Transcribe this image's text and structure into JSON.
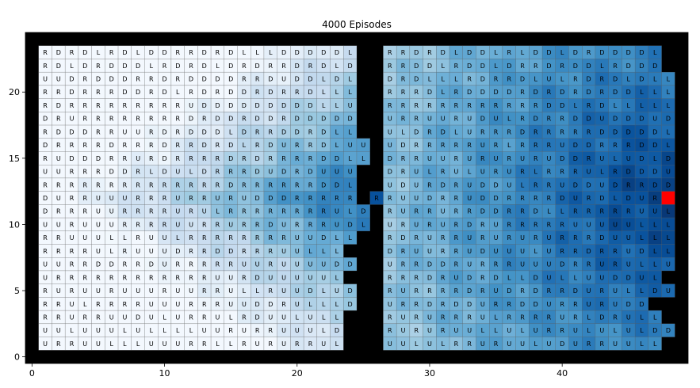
{
  "chart_data": {
    "type": "heatmap",
    "title": "4000 Episodes",
    "xlabel": "",
    "ylabel": "",
    "xlim": [
      -0.5,
      49.5
    ],
    "ylim": [
      -0.5,
      24.5
    ],
    "xticks": [
      0,
      10,
      20,
      30,
      40
    ],
    "yticks": [
      0,
      5,
      10,
      15,
      20
    ],
    "colormap": "Blues",
    "colors": {
      "wall": "#000000",
      "goal": "#ff0000",
      "gridline": "#666666"
    },
    "goal": [
      48,
      12
    ],
    "corridor": {
      "x": [
        26
      ],
      "y": [
        12
      ]
    },
    "rooms": [
      {
        "name": "left",
        "x_start": 1,
        "y_top": 23
      },
      {
        "name": "right",
        "x_start": 27,
        "y_top": 23
      }
    ],
    "policy_left_rows": [
      "RDRDLRDLDDRRDRDLLLDDDDDL",
      "RDLDRDDDLRDRDLDRDRRDRDLD",
      "UUDRDDDRRDRDDDDRRDUDDLDL",
      "RRDRRRDDRDLRDRDDRDRRDLLL",
      "RDRRRRRRRRRUDDDDDDDDDLLU",
      "DRURRRRRRRRDRDDRDDRDDDDD",
      "RDDDRRUURDRDDDLDRRDDRDLL",
      "DRRRRDRRRDRRDRDLRDURRDLUU",
      "RUDDDRRURDRRRRDRDRRRRDDLL",
      "UURRRDDRLDULDRRRDUDRDUUU",
      "RRRRRRRRRRRRRRDRRRRRRDDL",
      "DURRUUURRRURRURUDDDRRRRR",
      "DRRRUURRRRURULRRRRRRRRULD",
      "UURUUURRRRUURRURRDURRRUDL",
      "RRUUULLRUULRRRRRRRRUUDLL",
      "RRRRULRUUUDRRDDRRRUULLL",
      "UURRDDRRDURRRRRUURUUUUDD",
      "URRRRRRRRRRRRUURDUUUUUL",
      "RURUURUUURUURRULLRUUDLUD",
      "RRULRRRRUUURRRUUDDRULLLD",
      "RRURRUUDULURRULRDUULULL",
      "UULUUULULLLLUURURRUUULD",
      "URRUULLLUUURRLLRURURRUL"
    ],
    "policy_right_rows": [
      "RRDRDLDDLRLDDLDRDDDDL",
      "RRDDLRDDLDRRDRDDLRDDD",
      "DRDLLLRDRRDLULRDRDLDLL",
      "RRRDLRDDDDRDRDRDRDDLLL",
      "RRRRRRRRRRRRDDLRDLLLLL",
      "URRUURUDULRDRRDDUDDDUDU",
      "ULDRDLURRRDRRRRRDDDDDLD",
      "UDRRRRRURLRRRUDDRRRDDL",
      "DRRUURURURURUDDRULUDLDU",
      "DRULRULURURLRRRULRDDDU",
      "UDURDRUDDULRRUDDUDRRDD",
      "RUUDRRUDDRRRRDURDLDURRR",
      "RURRURRDDRRDLLRRRRRUULD",
      "URURURDRURRRRRUUUUULLL",
      "RDRURRURURURURRRDUULLL",
      "DRUURRUDUUULURRDRRUDLL",
      "URRDDRURRRUUUDRRURULLU",
      "RRRDRUDRDLLDULLUUDDUL",
      "RURRRRDRUDRDRRDURULLDU",
      "URRDRDDURRDDURRURUDD",
      "RURURRRULRRRRURLDRULL",
      "RURURUULLULURRULULULDD",
      "UULULRRURUULUDURRUULL"
    ]
  }
}
